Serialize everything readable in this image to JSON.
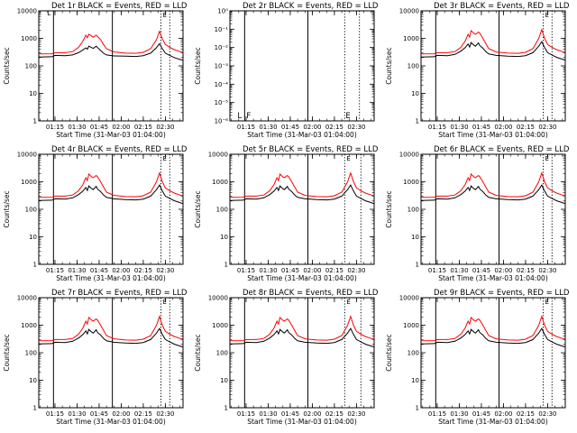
{
  "chart_data": [
    {
      "type": "line",
      "panel": 1,
      "title": "Det 1r  BLACK = Events, RED = LLD",
      "xlabel": "Start Time (31-Mar-03 01:04:00)",
      "ylabel": "Counts/sec",
      "yscale": "log",
      "ylim": [
        1,
        10000
      ],
      "yticks": [
        "1",
        "10",
        "100",
        "1000",
        "10000"
      ],
      "xticks": [
        "01:15",
        "01:30",
        "01:45",
        "02:00",
        "02:15",
        "02:30"
      ],
      "xlim": [
        "01:04",
        "02:42"
      ],
      "solid_vlines": [
        "01:14",
        "01:54"
      ],
      "dotted_vlines": [
        "02:27",
        "02:33"
      ],
      "series": [
        {
          "name": "Events",
          "color": "#000000",
          "shape": "det1_events"
        },
        {
          "name": "LLD",
          "color": "#ff0000",
          "shape": "det1_lld"
        }
      ],
      "annotations": [
        "L",
        "E"
      ]
    },
    {
      "type": "line",
      "panel": 2,
      "title": "Det 2r  BLACK = Events, RED = LLD",
      "xlabel": "Start Time (31-Mar-03 01:04:00)",
      "ylabel": "Counts/sec",
      "yscale": "log",
      "ylim": [
        1e-06,
        1
      ],
      "yticks": [
        "10⁻⁶",
        "10⁻⁵",
        "10⁻⁴",
        "10⁻³",
        "10⁻²",
        "10⁻¹",
        "10⁰"
      ],
      "xticks": [
        "01:15",
        "01:30",
        "01:45",
        "02:00",
        "02:15",
        "02:30"
      ],
      "xlim": [
        "01:04",
        "02:42"
      ],
      "solid_vlines": [
        "01:14",
        "01:57"
      ],
      "dotted_vlines": [
        "02:22",
        "02:32"
      ],
      "series": [],
      "annotations": [
        "L",
        "F",
        "E"
      ]
    },
    {
      "type": "line",
      "panel": 3,
      "title": "Det 3r  BLACK = Events, RED = LLD",
      "xlabel": "Start Time (31-Mar-03 01:04:00)",
      "ylabel": "Counts/sec",
      "yscale": "log",
      "ylim": [
        1,
        10000
      ],
      "yticks": [
        "1",
        "10",
        "100",
        "1000",
        "10000"
      ],
      "xticks": [
        "01:15",
        "01:30",
        "01:45",
        "02:00",
        "02:15",
        "02:30"
      ],
      "xlim": [
        "01:04",
        "02:42"
      ],
      "solid_vlines": [
        "01:14",
        "01:57"
      ],
      "dotted_vlines": [
        "02:27",
        "02:33"
      ],
      "series": [
        {
          "name": "Events",
          "color": "#000000",
          "shape": "std_events"
        },
        {
          "name": "LLD",
          "color": "#ff0000",
          "shape": "std_lld"
        }
      ],
      "annotations": [
        "E"
      ]
    },
    {
      "type": "line",
      "panel": 4,
      "title": "Det 4r  BLACK = Events, RED = LLD",
      "xlabel": "Start Time (31-Mar-03 01:04:00)",
      "ylabel": "Counts/sec",
      "yscale": "log",
      "ylim": [
        1,
        10000
      ],
      "yticks": [
        "1",
        "10",
        "100",
        "1000",
        "10000"
      ],
      "xticks": [
        "01:15",
        "01:30",
        "01:45",
        "02:00",
        "02:15",
        "02:30"
      ],
      "xlim": [
        "01:04",
        "02:42"
      ],
      "solid_vlines": [
        "01:14",
        "01:54"
      ],
      "dotted_vlines": [
        "02:27",
        "02:33"
      ],
      "series": [
        {
          "name": "Events",
          "color": "#000000",
          "shape": "std_events"
        },
        {
          "name": "LLD",
          "color": "#ff0000",
          "shape": "std_lld"
        }
      ],
      "annotations": [
        "E"
      ]
    },
    {
      "type": "line",
      "panel": 5,
      "title": "Det 5r  BLACK = Events, RED = LLD",
      "xlabel": "Start Time (31-Mar-03 01:04:00)",
      "ylabel": "Counts/sec",
      "yscale": "log",
      "ylim": [
        1,
        10000
      ],
      "yticks": [
        "1",
        "10",
        "100",
        "1000",
        "10000"
      ],
      "xticks": [
        "01:15",
        "01:30",
        "01:45",
        "02:00",
        "02:15",
        "02:30"
      ],
      "xlim": [
        "01:04",
        "02:42"
      ],
      "solid_vlines": [
        "01:14",
        "01:57"
      ],
      "dotted_vlines": [
        "02:22",
        "02:33"
      ],
      "series": [
        {
          "name": "Events",
          "color": "#000000",
          "shape": "std_events"
        },
        {
          "name": "LLD",
          "color": "#ff0000",
          "shape": "std_lld"
        }
      ],
      "annotations": [
        "E"
      ]
    },
    {
      "type": "line",
      "panel": 6,
      "title": "Det 6r  BLACK = Events, RED = LLD",
      "xlabel": "Start Time (31-Mar-03 01:04:00)",
      "ylabel": "Counts/sec",
      "yscale": "log",
      "ylim": [
        1,
        10000
      ],
      "yticks": [
        "1",
        "10",
        "100",
        "1000",
        "10000"
      ],
      "xticks": [
        "01:15",
        "01:30",
        "01:45",
        "02:00",
        "02:15",
        "02:30"
      ],
      "xlim": [
        "01:04",
        "02:42"
      ],
      "solid_vlines": [
        "01:14",
        "01:57"
      ],
      "dotted_vlines": [
        "02:27",
        "02:33"
      ],
      "series": [
        {
          "name": "Events",
          "color": "#000000",
          "shape": "std_events"
        },
        {
          "name": "LLD",
          "color": "#ff0000",
          "shape": "std_lld"
        }
      ],
      "annotations": [
        "E"
      ]
    },
    {
      "type": "line",
      "panel": 7,
      "title": "Det 7r  BLACK = Events, RED = LLD",
      "xlabel": "Start Time (31-Mar-03 01:04:00)",
      "ylabel": "Counts/sec",
      "yscale": "log",
      "ylim": [
        1,
        10000
      ],
      "yticks": [
        "1",
        "10",
        "100",
        "1000",
        "10000"
      ],
      "xticks": [
        "01:15",
        "01:30",
        "01:45",
        "02:00",
        "02:15",
        "02:30"
      ],
      "xlim": [
        "01:04",
        "02:42"
      ],
      "solid_vlines": [
        "01:14",
        "01:54"
      ],
      "dotted_vlines": [
        "02:27",
        "02:33"
      ],
      "series": [
        {
          "name": "Events",
          "color": "#000000",
          "shape": "std_events"
        },
        {
          "name": "LLD",
          "color": "#ff0000",
          "shape": "std_lld"
        }
      ],
      "annotations": [
        "E"
      ]
    },
    {
      "type": "line",
      "panel": 8,
      "title": "Det 8r  BLACK = Events, RED = LLD",
      "xlabel": "Start Time (31-Mar-03 01:04:00)",
      "ylabel": "Counts/sec",
      "yscale": "log",
      "ylim": [
        1,
        10000
      ],
      "yticks": [
        "1",
        "10",
        "100",
        "1000",
        "10000"
      ],
      "xticks": [
        "01:15",
        "01:30",
        "01:45",
        "02:00",
        "02:15",
        "02:30"
      ],
      "xlim": [
        "01:04",
        "02:42"
      ],
      "solid_vlines": [
        "01:14",
        "01:57"
      ],
      "dotted_vlines": [
        "02:22",
        "02:33"
      ],
      "series": [
        {
          "name": "Events",
          "color": "#000000",
          "shape": "std_events"
        },
        {
          "name": "LLD",
          "color": "#ff0000",
          "shape": "std_lld"
        }
      ],
      "annotations": [
        "E"
      ]
    },
    {
      "type": "line",
      "panel": 9,
      "title": "Det 9r  BLACK = Events, RED = LLD",
      "xlabel": "Start Time (31-Mar-03 01:04:00)",
      "ylabel": "Counts/sec",
      "yscale": "log",
      "ylim": [
        1,
        10000
      ],
      "yticks": [
        "1",
        "10",
        "100",
        "1000",
        "10000"
      ],
      "xticks": [
        "01:15",
        "01:30",
        "01:45",
        "02:00",
        "02:15",
        "02:30"
      ],
      "xlim": [
        "01:04",
        "02:42"
      ],
      "solid_vlines": [
        "01:14",
        "01:57"
      ],
      "dotted_vlines": [
        "02:27",
        "02:33"
      ],
      "series": [
        {
          "name": "Events",
          "color": "#000000",
          "shape": "std_events"
        },
        {
          "name": "LLD",
          "color": "#ff0000",
          "shape": "std_lld"
        }
      ],
      "annotations": [
        "E"
      ]
    }
  ],
  "curves": {
    "std_events": [
      [
        "01:04",
        210
      ],
      [
        "01:13",
        215
      ],
      [
        "01:15",
        240
      ],
      [
        "01:22",
        235
      ],
      [
        "01:27",
        260
      ],
      [
        "01:31",
        340
      ],
      [
        "01:34",
        460
      ],
      [
        "01:36",
        620
      ],
      [
        "01:37",
        480
      ],
      [
        "01:38",
        700
      ],
      [
        "01:40",
        560
      ],
      [
        "01:41",
        520
      ],
      [
        "01:43",
        680
      ],
      [
        "01:44",
        540
      ],
      [
        "01:46",
        440
      ],
      [
        "01:48",
        330
      ],
      [
        "01:50",
        270
      ],
      [
        "01:55",
        240
      ],
      [
        "02:03",
        225
      ],
      [
        "02:10",
        220
      ],
      [
        "02:15",
        235
      ],
      [
        "02:20",
        300
      ],
      [
        "02:24",
        520
      ],
      [
        "02:26",
        760
      ],
      [
        "02:28",
        460
      ],
      [
        "02:30",
        300
      ],
      [
        "02:33",
        250
      ],
      [
        "02:36",
        205
      ],
      [
        "02:40",
        175
      ],
      [
        "02:42",
        160
      ]
    ],
    "std_lld": [
      [
        "01:04",
        270
      ],
      [
        "01:13",
        275
      ],
      [
        "01:15",
        300
      ],
      [
        "01:22",
        300
      ],
      [
        "01:27",
        330
      ],
      [
        "01:31",
        470
      ],
      [
        "01:34",
        800
      ],
      [
        "01:36",
        1400
      ],
      [
        "01:37",
        1100
      ],
      [
        "01:38",
        1900
      ],
      [
        "01:40",
        1500
      ],
      [
        "01:41",
        1400
      ],
      [
        "01:43",
        1700
      ],
      [
        "01:44",
        1500
      ],
      [
        "01:46",
        1000
      ],
      [
        "01:48",
        650
      ],
      [
        "01:50",
        420
      ],
      [
        "01:55",
        320
      ],
      [
        "02:03",
        290
      ],
      [
        "02:10",
        285
      ],
      [
        "02:15",
        310
      ],
      [
        "02:20",
        420
      ],
      [
        "02:24",
        1000
      ],
      [
        "02:26",
        2100
      ],
      [
        "02:28",
        1000
      ],
      [
        "02:30",
        600
      ],
      [
        "02:33",
        470
      ],
      [
        "02:36",
        390
      ],
      [
        "02:40",
        330
      ],
      [
        "02:42",
        310
      ]
    ],
    "det1_events": [
      [
        "01:04",
        210
      ],
      [
        "01:13",
        215
      ],
      [
        "01:15",
        240
      ],
      [
        "01:22",
        235
      ],
      [
        "01:27",
        250
      ],
      [
        "01:31",
        300
      ],
      [
        "01:34",
        380
      ],
      [
        "01:36",
        450
      ],
      [
        "01:37",
        400
      ],
      [
        "01:38",
        520
      ],
      [
        "01:40",
        460
      ],
      [
        "01:41",
        430
      ],
      [
        "01:43",
        520
      ],
      [
        "01:44",
        460
      ],
      [
        "01:46",
        360
      ],
      [
        "01:48",
        290
      ],
      [
        "01:50",
        250
      ],
      [
        "01:55",
        230
      ],
      [
        "02:03",
        225
      ],
      [
        "02:10",
        220
      ],
      [
        "02:15",
        235
      ],
      [
        "02:20",
        290
      ],
      [
        "02:24",
        460
      ],
      [
        "02:26",
        640
      ],
      [
        "02:28",
        420
      ],
      [
        "02:30",
        290
      ],
      [
        "02:33",
        240
      ],
      [
        "02:36",
        200
      ],
      [
        "02:40",
        170
      ],
      [
        "02:42",
        160
      ]
    ],
    "det1_lld": [
      [
        "01:04",
        270
      ],
      [
        "01:13",
        275
      ],
      [
        "01:15",
        300
      ],
      [
        "01:22",
        300
      ],
      [
        "01:27",
        330
      ],
      [
        "01:31",
        470
      ],
      [
        "01:34",
        800
      ],
      [
        "01:36",
        1300
      ],
      [
        "01:37",
        1050
      ],
      [
        "01:38",
        1400
      ],
      [
        "01:40",
        1200
      ],
      [
        "01:41",
        1100
      ],
      [
        "01:43",
        1300
      ],
      [
        "01:44",
        1150
      ],
      [
        "01:46",
        900
      ],
      [
        "01:48",
        600
      ],
      [
        "01:50",
        420
      ],
      [
        "01:55",
        320
      ],
      [
        "02:03",
        290
      ],
      [
        "02:10",
        285
      ],
      [
        "02:15",
        310
      ],
      [
        "02:20",
        420
      ],
      [
        "02:24",
        900
      ],
      [
        "02:26",
        1800
      ],
      [
        "02:28",
        950
      ],
      [
        "02:30",
        600
      ],
      [
        "02:33",
        470
      ],
      [
        "02:36",
        390
      ],
      [
        "02:40",
        330
      ],
      [
        "02:42",
        310
      ]
    ]
  }
}
